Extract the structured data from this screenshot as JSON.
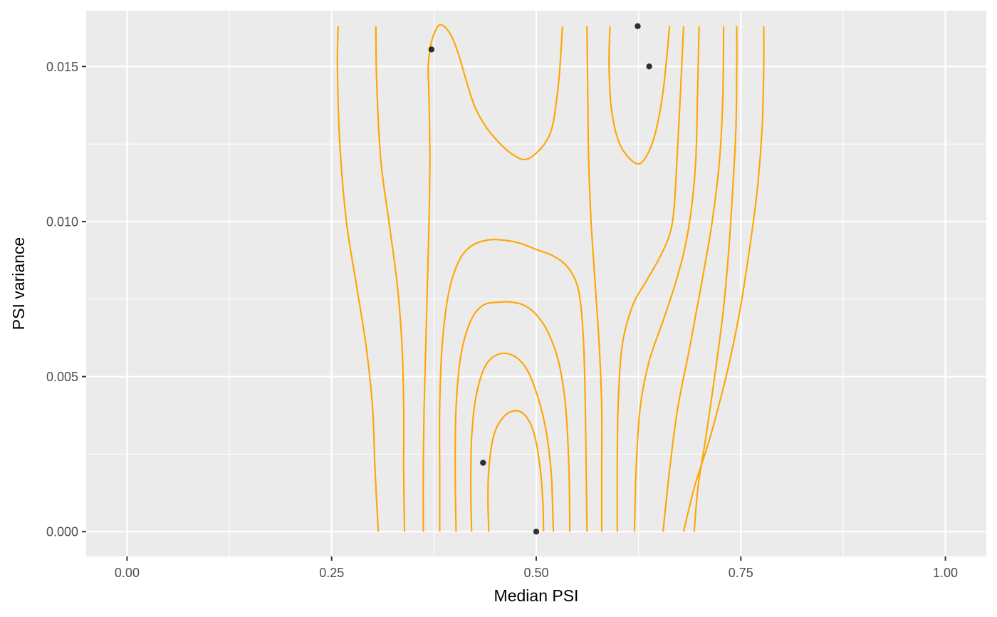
{
  "chart_data": {
    "type": "scatter",
    "title": "",
    "xlabel": "Median PSI",
    "ylabel": "PSI variance",
    "xlim": [
      -0.05,
      1.05
    ],
    "ylim": [
      -0.0008,
      0.0168
    ],
    "x_ticks": [
      0.0,
      0.25,
      0.5,
      0.75,
      1.0
    ],
    "x_tick_labels": [
      "0.00",
      "0.25",
      "0.50",
      "0.75",
      "1.00"
    ],
    "y_ticks": [
      0.0,
      0.005,
      0.01,
      0.015
    ],
    "y_tick_labels": [
      "0.000",
      "0.005",
      "0.010",
      "0.015"
    ],
    "grid": true,
    "background": "#ebebeb",
    "colors": {
      "points": "#000000",
      "contours": "#ffa500"
    },
    "points": [
      {
        "x": 0.372,
        "y": 0.01555
      },
      {
        "x": 0.624,
        "y": 0.0163
      },
      {
        "x": 0.638,
        "y": 0.015
      },
      {
        "x": 0.435,
        "y": 0.00222
      },
      {
        "x": 0.5,
        "y": 0.0
      }
    ],
    "contours": [
      {
        "points": [
          [
            0.258,
            0.0163
          ],
          [
            0.257,
            0.015
          ],
          [
            0.26,
            0.0125
          ],
          [
            0.268,
            0.01
          ],
          [
            0.28,
            0.008
          ],
          [
            0.292,
            0.006
          ],
          [
            0.3,
            0.004
          ],
          [
            0.303,
            0.002
          ],
          [
            0.307,
            0.0
          ]
        ]
      },
      {
        "points": [
          [
            0.304,
            0.0163
          ],
          [
            0.305,
            0.0145
          ],
          [
            0.31,
            0.012
          ],
          [
            0.32,
            0.01
          ],
          [
            0.33,
            0.008
          ],
          [
            0.336,
            0.006
          ],
          [
            0.338,
            0.004
          ],
          [
            0.338,
            0.002
          ],
          [
            0.339,
            0.0
          ]
        ]
      },
      {
        "points": [
          [
            0.371,
            0.0
          ]
        ],
        "closedLoop": false
      },
      {
        "points": [
          [
            0.362,
            0.0
          ],
          [
            0.362,
            0.002
          ],
          [
            0.363,
            0.004
          ],
          [
            0.365,
            0.006
          ],
          [
            0.367,
            0.008
          ],
          [
            0.369,
            0.01
          ],
          [
            0.37,
            0.012
          ],
          [
            0.369,
            0.014
          ],
          [
            0.368,
            0.015
          ],
          [
            0.372,
            0.0158
          ],
          [
            0.38,
            0.0163
          ],
          [
            0.387,
            0.0163
          ],
          [
            0.396,
            0.016
          ],
          [
            0.405,
            0.0154
          ],
          [
            0.415,
            0.0145
          ],
          [
            0.425,
            0.0137
          ],
          [
            0.44,
            0.013
          ],
          [
            0.46,
            0.0124
          ],
          [
            0.475,
            0.0121
          ],
          [
            0.485,
            0.012
          ],
          [
            0.495,
            0.0121
          ],
          [
            0.51,
            0.0125
          ],
          [
            0.52,
            0.0131
          ],
          [
            0.527,
            0.0144
          ],
          [
            0.53,
            0.0154
          ],
          [
            0.532,
            0.0163
          ]
        ]
      },
      {
        "points": [
          [
            0.382,
            0.0
          ],
          [
            0.382,
            0.002
          ],
          [
            0.382,
            0.004
          ],
          [
            0.385,
            0.006
          ],
          [
            0.393,
            0.0077
          ],
          [
            0.405,
            0.0087
          ],
          [
            0.42,
            0.0092
          ],
          [
            0.44,
            0.0094
          ],
          [
            0.46,
            0.0094
          ],
          [
            0.48,
            0.0093
          ],
          [
            0.5,
            0.0091
          ],
          [
            0.52,
            0.0089
          ],
          [
            0.536,
            0.0086
          ],
          [
            0.548,
            0.0081
          ],
          [
            0.554,
            0.0074
          ],
          [
            0.558,
            0.006
          ],
          [
            0.56,
            0.004
          ],
          [
            0.561,
            0.002
          ],
          [
            0.562,
            0.0
          ]
        ]
      },
      {
        "points": [
          [
            0.402,
            0.0
          ],
          [
            0.401,
            0.002
          ],
          [
            0.402,
            0.004
          ],
          [
            0.408,
            0.0057
          ],
          [
            0.42,
            0.0068
          ],
          [
            0.435,
            0.0073
          ],
          [
            0.455,
            0.0074
          ],
          [
            0.47,
            0.0074
          ],
          [
            0.485,
            0.0073
          ],
          [
            0.5,
            0.007
          ],
          [
            0.515,
            0.0064
          ],
          [
            0.528,
            0.0054
          ],
          [
            0.536,
            0.004
          ],
          [
            0.54,
            0.002
          ],
          [
            0.541,
            0.0
          ]
        ]
      },
      {
        "points": [
          [
            0.421,
            0.0
          ],
          [
            0.42,
            0.0015
          ],
          [
            0.421,
            0.003
          ],
          [
            0.426,
            0.0043
          ],
          [
            0.437,
            0.0053
          ],
          [
            0.452,
            0.0057
          ],
          [
            0.47,
            0.0057
          ],
          [
            0.487,
            0.0053
          ],
          [
            0.5,
            0.0045
          ],
          [
            0.511,
            0.0034
          ],
          [
            0.518,
            0.002
          ],
          [
            0.52,
            0.0008
          ],
          [
            0.521,
            0.0
          ]
        ]
      },
      {
        "points": [
          [
            0.442,
            0.0
          ],
          [
            0.441,
            0.001
          ],
          [
            0.442,
            0.002
          ],
          [
            0.448,
            0.0031
          ],
          [
            0.46,
            0.0037
          ],
          [
            0.475,
            0.0039
          ],
          [
            0.488,
            0.0037
          ],
          [
            0.498,
            0.0031
          ],
          [
            0.505,
            0.002
          ],
          [
            0.508,
            0.001
          ],
          [
            0.509,
            0.0
          ]
        ]
      },
      {
        "points": [
          [
            0.58,
            0.0
          ],
          [
            0.58,
            0.002
          ],
          [
            0.58,
            0.004
          ],
          [
            0.577,
            0.006
          ],
          [
            0.572,
            0.008
          ],
          [
            0.567,
            0.01
          ],
          [
            0.564,
            0.012
          ],
          [
            0.563,
            0.014
          ],
          [
            0.562,
            0.0163
          ]
        ]
      },
      {
        "points": [
          [
            0.599,
            0.0
          ],
          [
            0.599,
            0.002
          ],
          [
            0.6,
            0.004
          ],
          [
            0.605,
            0.006
          ],
          [
            0.618,
            0.0073
          ],
          [
            0.635,
            0.0081
          ],
          [
            0.65,
            0.0088
          ],
          [
            0.662,
            0.0095
          ],
          [
            0.668,
            0.0103
          ],
          [
            0.672,
            0.012
          ],
          [
            0.676,
            0.014
          ],
          [
            0.68,
            0.0163
          ]
        ]
      },
      {
        "points": [
          [
            0.62,
            0.0
          ],
          [
            0.622,
            0.002
          ],
          [
            0.627,
            0.004
          ],
          [
            0.638,
            0.0055
          ],
          [
            0.655,
            0.0068
          ],
          [
            0.67,
            0.008
          ],
          [
            0.682,
            0.0092
          ],
          [
            0.69,
            0.0105
          ],
          [
            0.695,
            0.012
          ],
          [
            0.697,
            0.014
          ],
          [
            0.699,
            0.0163
          ]
        ]
      },
      {
        "points": [
          [
            0.655,
            0.0
          ],
          [
            0.663,
            0.002
          ],
          [
            0.673,
            0.004
          ],
          [
            0.688,
            0.006
          ],
          [
            0.702,
            0.008
          ],
          [
            0.715,
            0.01
          ],
          [
            0.724,
            0.012
          ],
          [
            0.728,
            0.014
          ],
          [
            0.729,
            0.0163
          ]
        ]
      },
      {
        "points": [
          [
            0.59,
            0.0163
          ],
          [
            0.589,
            0.015
          ],
          [
            0.592,
            0.0136
          ],
          [
            0.602,
            0.0125
          ],
          [
            0.62,
            0.0119
          ],
          [
            0.632,
            0.012
          ],
          [
            0.645,
            0.0128
          ],
          [
            0.655,
            0.0142
          ],
          [
            0.663,
            0.0163
          ]
        ]
      },
      {
        "points": [
          [
            0.745,
            0.0163
          ],
          [
            0.745,
            0.015
          ],
          [
            0.744,
            0.013
          ],
          [
            0.74,
            0.011
          ],
          [
            0.735,
            0.009
          ],
          [
            0.728,
            0.007
          ],
          [
            0.718,
            0.005
          ],
          [
            0.707,
            0.003
          ],
          [
            0.698,
            0.0015
          ],
          [
            0.693,
            0.0
          ]
        ]
      },
      {
        "points": [
          [
            0.778,
            0.0163
          ],
          [
            0.778,
            0.015
          ],
          [
            0.776,
            0.013
          ],
          [
            0.77,
            0.011
          ],
          [
            0.76,
            0.009
          ],
          [
            0.748,
            0.007
          ],
          [
            0.732,
            0.005
          ],
          [
            0.712,
            0.003
          ],
          [
            0.694,
            0.0015
          ],
          [
            0.68,
            0.0
          ]
        ]
      }
    ]
  }
}
